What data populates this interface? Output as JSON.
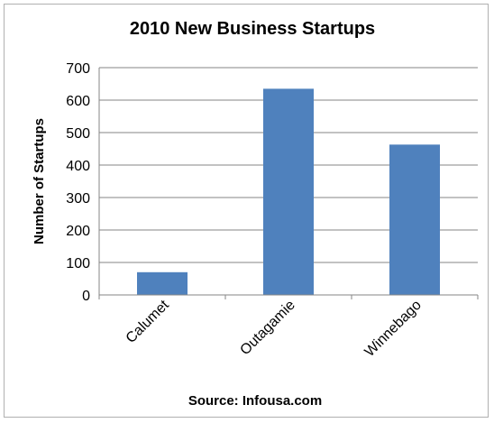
{
  "chart_data": {
    "type": "bar",
    "title": "2010 New Business Startups",
    "ylabel": "Number of Startups",
    "xlabel": "",
    "source": "Source: Infousa.com",
    "categories": [
      "Calumet",
      "Outagamie",
      "Winnebago"
    ],
    "values": [
      70,
      635,
      463
    ],
    "ylim": [
      0,
      700
    ],
    "yticks": [
      0,
      100,
      200,
      300,
      400,
      500,
      600,
      700
    ],
    "grid": true,
    "legend": "none",
    "bar_color": "#4f81bd",
    "grid_color": "#868686"
  }
}
